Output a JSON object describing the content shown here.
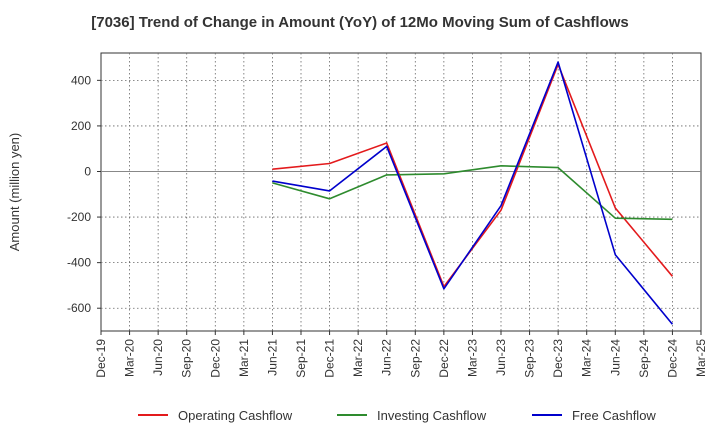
{
  "chart_data": {
    "type": "line",
    "title": "[7036]  Trend of Change in Amount (YoY) of 12Mo Moving Sum of Cashflows",
    "xlabel": "",
    "ylabel": "Amount (million yen)",
    "ylim": [
      -700,
      520
    ],
    "yticks": [
      400,
      200,
      0,
      -200,
      -400,
      -600
    ],
    "grid": true,
    "legend_position": "bottom",
    "categories": [
      "Dec-19",
      "Mar-20",
      "Jun-20",
      "Sep-20",
      "Dec-20",
      "Mar-21",
      "Jun-21",
      "Sep-21",
      "Dec-21",
      "Mar-22",
      "Jun-22",
      "Sep-22",
      "Dec-22",
      "Mar-23",
      "Jun-23",
      "Sep-23",
      "Dec-23",
      "Mar-24",
      "Jun-24",
      "Sep-24",
      "Dec-24",
      "Mar-25"
    ],
    "series": [
      {
        "name": "Operating Cashflow",
        "color": "#e31a1c",
        "values": [
          null,
          null,
          null,
          null,
          null,
          null,
          10,
          null,
          35,
          null,
          125,
          null,
          -505,
          null,
          -170,
          null,
          470,
          null,
          -160,
          null,
          -460,
          null
        ]
      },
      {
        "name": "Investing Cashflow",
        "color": "#2e8b2e",
        "values": [
          null,
          null,
          null,
          null,
          null,
          null,
          -50,
          null,
          -120,
          null,
          -15,
          null,
          -10,
          null,
          25,
          null,
          17,
          null,
          -205,
          null,
          -210,
          null
        ]
      },
      {
        "name": "Free Cashflow",
        "color": "#0000cc",
        "values": [
          null,
          null,
          null,
          null,
          null,
          null,
          -42,
          null,
          -85,
          null,
          110,
          null,
          -515,
          null,
          -150,
          null,
          480,
          null,
          -365,
          null,
          -670,
          null
        ]
      }
    ]
  }
}
